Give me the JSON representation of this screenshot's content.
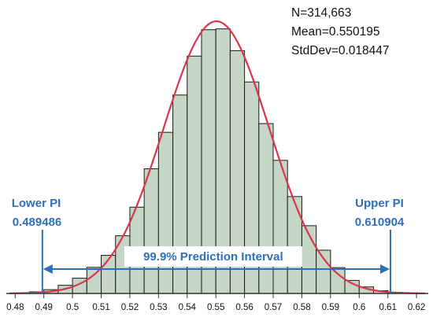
{
  "chart_data": {
    "type": "bar",
    "stats": {
      "n": "N=314,663",
      "mean": "Mean=0.550195",
      "stddev": "StdDev=0.018447"
    },
    "x_ticks": [
      "0.48",
      "0.49",
      "0.5",
      "0.51",
      "0.52",
      "0.53",
      "0.54",
      "0.55",
      "0.56",
      "0.57",
      "0.58",
      "0.59",
      "0.6",
      "0.61",
      "0.62"
    ],
    "xlim": [
      0.478,
      0.623
    ],
    "ylim": [
      0,
      1
    ],
    "bin_width": 0.005,
    "bins": [
      {
        "x0": 0.48,
        "rel": 0.002
      },
      {
        "x0": 0.485,
        "rel": 0.006
      },
      {
        "x0": 0.49,
        "rel": 0.014
      },
      {
        "x0": 0.495,
        "rel": 0.03
      },
      {
        "x0": 0.5,
        "rel": 0.056
      },
      {
        "x0": 0.505,
        "rel": 0.096
      },
      {
        "x0": 0.51,
        "rel": 0.14
      },
      {
        "x0": 0.515,
        "rel": 0.212
      },
      {
        "x0": 0.52,
        "rel": 0.317
      },
      {
        "x0": 0.525,
        "rel": 0.458
      },
      {
        "x0": 0.53,
        "rel": 0.592
      },
      {
        "x0": 0.535,
        "rel": 0.729
      },
      {
        "x0": 0.54,
        "rel": 0.872
      },
      {
        "x0": 0.545,
        "rel": 0.969
      },
      {
        "x0": 0.55,
        "rel": 0.972
      },
      {
        "x0": 0.555,
        "rel": 0.892
      },
      {
        "x0": 0.56,
        "rel": 0.777
      },
      {
        "x0": 0.565,
        "rel": 0.624
      },
      {
        "x0": 0.57,
        "rel": 0.489
      },
      {
        "x0": 0.575,
        "rel": 0.356
      },
      {
        "x0": 0.58,
        "rel": 0.249
      },
      {
        "x0": 0.585,
        "rel": 0.159
      },
      {
        "x0": 0.59,
        "rel": 0.095
      },
      {
        "x0": 0.595,
        "rel": 0.048
      },
      {
        "x0": 0.6,
        "rel": 0.024
      },
      {
        "x0": 0.605,
        "rel": 0.01
      },
      {
        "x0": 0.61,
        "rel": 0.004
      },
      {
        "x0": 0.615,
        "rel": 0.001
      }
    ],
    "normal_curve": {
      "mean": 0.550195,
      "stddev": 0.018447
    },
    "prediction_interval": {
      "label": "99.9% Prediction Interval",
      "lower": {
        "label": "Lower PI",
        "value": "0.489486",
        "x": 0.489486
      },
      "upper": {
        "label": "Upper PI",
        "value": "0.610904",
        "x": 0.610904
      }
    },
    "colors": {
      "bar_fill": "#c6d6c6",
      "bar_stroke": "#1a1a1a",
      "curve": "#d9364b",
      "interval": "#2e6fb7",
      "axis": "#333333"
    }
  }
}
